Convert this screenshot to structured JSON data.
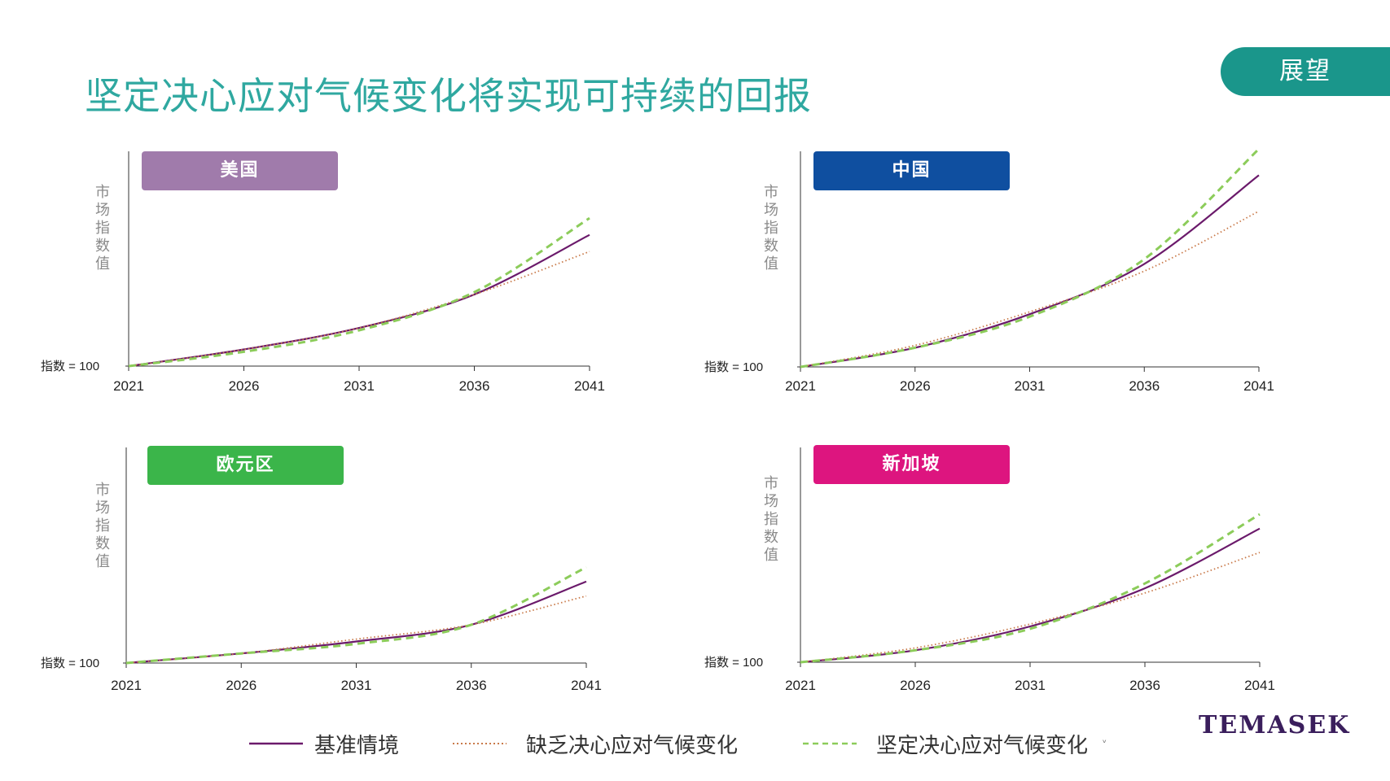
{
  "title": "坚定决心应对气候变化将实现可持续的回报",
  "section_tab": "展望",
  "brand": "TEMASEK",
  "colors": {
    "title": "#2fa8a0",
    "tab": "#1a968b",
    "baseline": "#6b1a6b",
    "lack": "#c97a4a",
    "firm": "#8ccc5a",
    "axis": "#333333",
    "ylabel": "#8a8a8a"
  },
  "legend": [
    {
      "label": "基准情境",
      "style": "solid",
      "color": "#6b1a6b"
    },
    {
      "label": "缺乏决心应对气候变化",
      "style": "dotted",
      "color": "#c97a4a"
    },
    {
      "label": "坚定决心应对气候变化",
      "style": "dashed",
      "color": "#8ccc5a"
    }
  ],
  "legend_marker": "ᵛ",
  "chart_data": [
    {
      "type": "line",
      "region": "美国",
      "badge_color": "#a07bab",
      "ylabel": "市场指数值",
      "baseline_label": "指数 = 100",
      "x": [
        2021,
        2026,
        2031,
        2036,
        2041
      ],
      "xticks": [
        "2021",
        "2026",
        "2031",
        "2036",
        "2041"
      ],
      "series": [
        {
          "name": "基准情境",
          "values": [
            100,
            107,
            116,
            130,
            155
          ]
        },
        {
          "name": "缺乏决心应对气候变化",
          "values": [
            100,
            107,
            116,
            130,
            148
          ]
        },
        {
          "name": "坚定决心应对气候变化",
          "values": [
            100,
            106,
            115,
            131,
            162
          ]
        }
      ],
      "ylim": [
        100,
        190
      ]
    },
    {
      "type": "line",
      "region": "中国",
      "badge_color": "#0f4fa0",
      "ylabel": "市场指数值",
      "baseline_label": "指数 = 100",
      "x": [
        2021,
        2026,
        2031,
        2036,
        2041
      ],
      "xticks": [
        "2021",
        "2026",
        "2031",
        "2036",
        "2041"
      ],
      "series": [
        {
          "name": "基准情境",
          "values": [
            100,
            108,
            122,
            143,
            180
          ]
        },
        {
          "name": "缺乏决心应对气候变化",
          "values": [
            100,
            109,
            123,
            140,
            165
          ]
        },
        {
          "name": "坚定决心应对气候变化",
          "values": [
            100,
            108,
            121,
            145,
            191
          ]
        }
      ],
      "ylim": [
        100,
        190
      ]
    },
    {
      "type": "line",
      "region": "欧元区",
      "badge_color": "#3bb54a",
      "ylabel": "市场指数值",
      "baseline_label": "指数 = 100",
      "x": [
        2021,
        2026,
        2031,
        2036,
        2041
      ],
      "xticks": [
        "2021",
        "2026",
        "2031",
        "2036",
        "2041"
      ],
      "series": [
        {
          "name": "基准情境",
          "values": [
            100,
            104,
            109,
            116,
            134
          ]
        },
        {
          "name": "缺乏决心应对气候变化",
          "values": [
            100,
            104,
            110,
            116,
            128
          ]
        },
        {
          "name": "坚定决心应对气候变化",
          "values": [
            100,
            104,
            108,
            116,
            140
          ]
        }
      ],
      "ylim": [
        100,
        190
      ]
    },
    {
      "type": "line",
      "region": "新加坡",
      "badge_color": "#dd157f",
      "ylabel": "市场指数值",
      "baseline_label": "指数 = 100",
      "x": [
        2021,
        2026,
        2031,
        2036,
        2041
      ],
      "xticks": [
        "2021",
        "2026",
        "2031",
        "2036",
        "2041"
      ],
      "series": [
        {
          "name": "基准情境",
          "values": [
            100,
            105,
            115,
            131,
            156
          ]
        },
        {
          "name": "缺乏决心应对气候变化",
          "values": [
            100,
            106,
            116,
            129,
            146
          ]
        },
        {
          "name": "坚定决心应对气候变化",
          "values": [
            100,
            105,
            114,
            133,
            162
          ]
        }
      ],
      "ylim": [
        100,
        190
      ]
    }
  ]
}
